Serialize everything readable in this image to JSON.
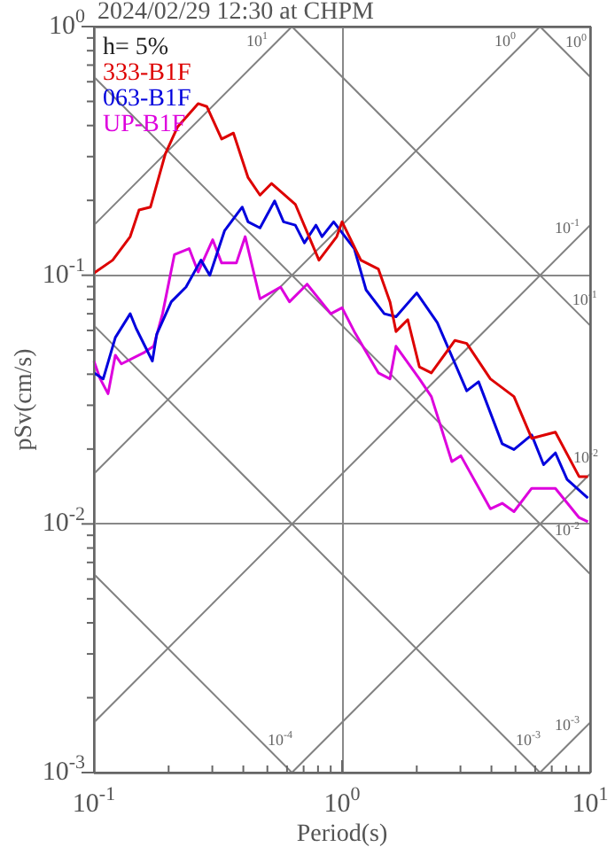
{
  "chart_data": {
    "type": "line",
    "title": "2024/02/29 12:30 at CHPM",
    "xlabel": "Period(s)",
    "ylabel": "pSv(cm/s)",
    "log": "xy",
    "grid": true,
    "legend": "top left",
    "xlim": [
      0.1,
      10
    ],
    "ylim": [
      0.001,
      1
    ],
    "xticks": [
      {
        "value": 0.1,
        "label": "10$^{-1}$"
      },
      {
        "value": 1,
        "label": "10$^{0}$"
      },
      {
        "value": 10,
        "label": "10$^{1}$"
      }
    ],
    "yticks": [
      {
        "value": 0.001,
        "label": "10$^{-3}$"
      },
      {
        "value": 0.01,
        "label": "10$^{-2}$"
      },
      {
        "value": 0.1,
        "label": "10$^{-1}$"
      },
      {
        "value": 1,
        "label": "10$^{0}$"
      }
    ],
    "series": [
      {
        "name": "333-B1F",
        "color": "#dd0000",
        "x": [
          0.1,
          0.119,
          0.14,
          0.152,
          0.169,
          0.194,
          0.217,
          0.263,
          0.285,
          0.327,
          0.365,
          0.418,
          0.467,
          0.52,
          0.648,
          0.807,
          0.952,
          1.0,
          1.19,
          1.4,
          1.56,
          1.65,
          1.84,
          2.05,
          2.29,
          2.85,
          3.18,
          3.96,
          4.93,
          5.81,
          7.24,
          9.02,
          9.79
        ],
        "values": [
          0.102,
          0.115,
          0.143,
          0.183,
          0.188,
          0.308,
          0.394,
          0.49,
          0.477,
          0.353,
          0.373,
          0.247,
          0.21,
          0.234,
          0.193,
          0.115,
          0.143,
          0.164,
          0.115,
          0.106,
          0.0782,
          0.0594,
          0.0663,
          0.0428,
          0.0405,
          0.0547,
          0.0532,
          0.0383,
          0.0325,
          0.0221,
          0.0234,
          0.0155,
          0.0155
        ]
      },
      {
        "name": "063-B1F",
        "color": "#0000dd",
        "x": [
          0.1,
          0.109,
          0.122,
          0.14,
          0.148,
          0.172,
          0.179,
          0.205,
          0.235,
          0.27,
          0.293,
          0.336,
          0.396,
          0.418,
          0.467,
          0.535,
          0.581,
          0.648,
          0.705,
          0.785,
          0.83,
          0.925,
          1.12,
          1.25,
          1.48,
          1.65,
          2.0,
          2.42,
          3.18,
          3.55,
          4.42,
          4.93,
          5.81,
          6.49,
          7.24,
          8.07,
          9.79
        ],
        "values": [
          0.0405,
          0.0383,
          0.0562,
          0.07,
          0.0611,
          0.0452,
          0.0578,
          0.0782,
          0.0896,
          0.115,
          0.1,
          0.151,
          0.188,
          0.164,
          0.155,
          0.199,
          0.164,
          0.159,
          0.135,
          0.159,
          0.143,
          0.164,
          0.128,
          0.0873,
          0.07,
          0.0681,
          0.0849,
          0.0645,
          0.0343,
          0.0373,
          0.021,
          0.0199,
          0.0228,
          0.0173,
          0.0193,
          0.0151,
          0.0127
        ]
      },
      {
        "name": "UP-B1F",
        "color": "#dd00dd",
        "x": [
          0.1,
          0.106,
          0.114,
          0.122,
          0.129,
          0.16,
          0.174,
          0.189,
          0.211,
          0.242,
          0.263,
          0.301,
          0.327,
          0.375,
          0.407,
          0.467,
          0.565,
          0.614,
          0.723,
          0.901,
          1.0,
          1.12,
          1.4,
          1.56,
          1.65,
          2.05,
          2.29,
          2.77,
          3.01,
          3.96,
          4.42,
          4.93,
          5.81,
          7.24,
          9.02,
          9.79
        ],
        "values": [
          0.0452,
          0.0383,
          0.0334,
          0.0477,
          0.044,
          0.049,
          0.0518,
          0.07,
          0.121,
          0.128,
          0.103,
          0.139,
          0.112,
          0.112,
          0.143,
          0.0804,
          0.0896,
          0.0782,
          0.0921,
          0.07,
          0.074,
          0.0594,
          0.0405,
          0.0383,
          0.0518,
          0.0383,
          0.0325,
          0.0178,
          0.0188,
          0.0115,
          0.0121,
          0.0112,
          0.0139,
          0.0139,
          0.0106,
          0.0102
        ]
      },
      {
        "type": "line",
        "color": "#808080",
        "x": [
          0.1,
          0.628
        ],
        "values": [
          0.159,
          1.0
        ]
      },
      {
        "type": "line",
        "color": "#808080",
        "x": [
          0.1,
          6.28
        ],
        "values": [
          0.0159,
          1.0
        ]
      },
      {
        "type": "line",
        "color": "#808080",
        "x": [
          0.1,
          10
        ],
        "values": [
          0.00159,
          0.159
        ]
      },
      {
        "type": "line",
        "color": "#808080",
        "x": [
          0.628,
          10
        ],
        "values": [
          0.001,
          0.0159
        ]
      },
      {
        "type": "line",
        "color": "#808080",
        "x": [
          6.28,
          10
        ],
        "values": [
          0.001,
          0.00159
        ]
      },
      {
        "type": "line",
        "color": "#808080",
        "x": [
          6.28,
          10
        ],
        "values": [
          1.0,
          0.628
        ]
      },
      {
        "type": "line",
        "color": "#808080",
        "x": [
          0.628,
          10
        ],
        "values": [
          1.0,
          0.0628
        ]
      },
      {
        "type": "line",
        "color": "#808080",
        "x": [
          0.1,
          10
        ],
        "values": [
          0.628,
          0.00628
        ]
      },
      {
        "type": "line",
        "color": "#808080",
        "x": [
          0.1,
          6.28
        ],
        "values": [
          0.0628,
          0.001
        ]
      },
      {
        "type": "line",
        "color": "#808080",
        "x": [
          0.1,
          0.628
        ],
        "values": [
          0.00628,
          0.001
        ]
      }
    ],
    "annotations": [
      "h= 5%",
      {
        "text": "10$^{1}$",
        "x": 0.454,
        "y": 0.723
      },
      {
        "text": "10$^{0}$",
        "x": 4.54,
        "y": 0.723
      },
      {
        "text": "10$^{0}$",
        "x": 8.77,
        "y": 0.716
      },
      {
        "text": "10$^{-1}$",
        "x": 8.07,
        "y": 0.1284
      },
      {
        "text": "10$^{-1}$",
        "x": 9.5,
        "y": 0.0661
      },
      {
        "text": "10$^{-2}$",
        "x": 9.6,
        "y": 0.01528
      },
      {
        "text": "10$^{-2}$",
        "x": 8.07,
        "y": 0.00779
      },
      {
        "text": "10$^{-3}$",
        "x": 8.07,
        "y": 0.001284
      },
      {
        "text": "10$^{-3}$",
        "x": 5.62,
        "y": 0.001118
      },
      {
        "text": "10$^{-4}$",
        "x": 0.562,
        "y": 0.001118
      }
    ]
  }
}
